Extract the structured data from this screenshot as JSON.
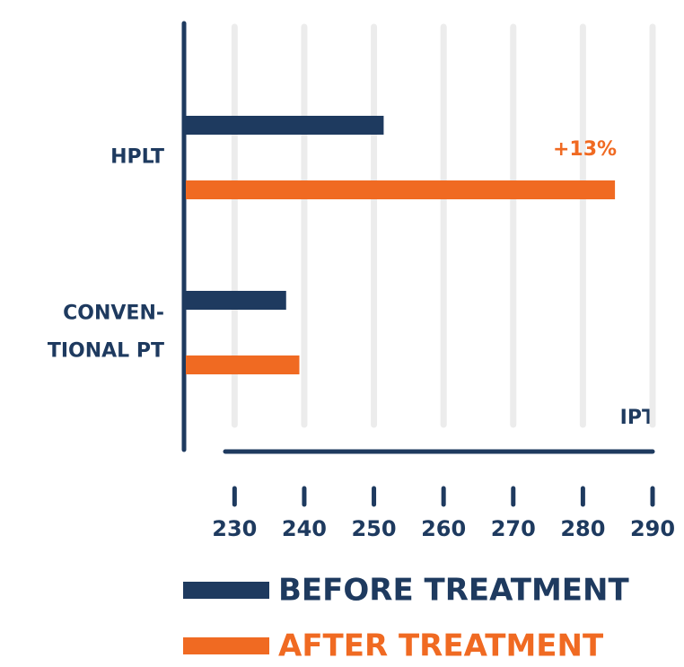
{
  "chart_data": {
    "type": "hbar",
    "categories": [
      [
        "HPLT"
      ],
      [
        "CONVEN-",
        "TIONAL PT"
      ]
    ],
    "series": [
      {
        "name": "BEFORE TREATMENT",
        "color": "#1e3a5f",
        "values": [
          251.4,
          237.4
        ]
      },
      {
        "name": "AFTER TREATMENT",
        "color": "#f06a22",
        "values": [
          284.6,
          239.3
        ]
      }
    ],
    "annotation": "+13%",
    "xlabel": "IPT",
    "xlim": [
      223,
      290
    ],
    "xticks": [
      230,
      240,
      250,
      260,
      270,
      280,
      290
    ],
    "grid": true,
    "legend": "bottom"
  }
}
